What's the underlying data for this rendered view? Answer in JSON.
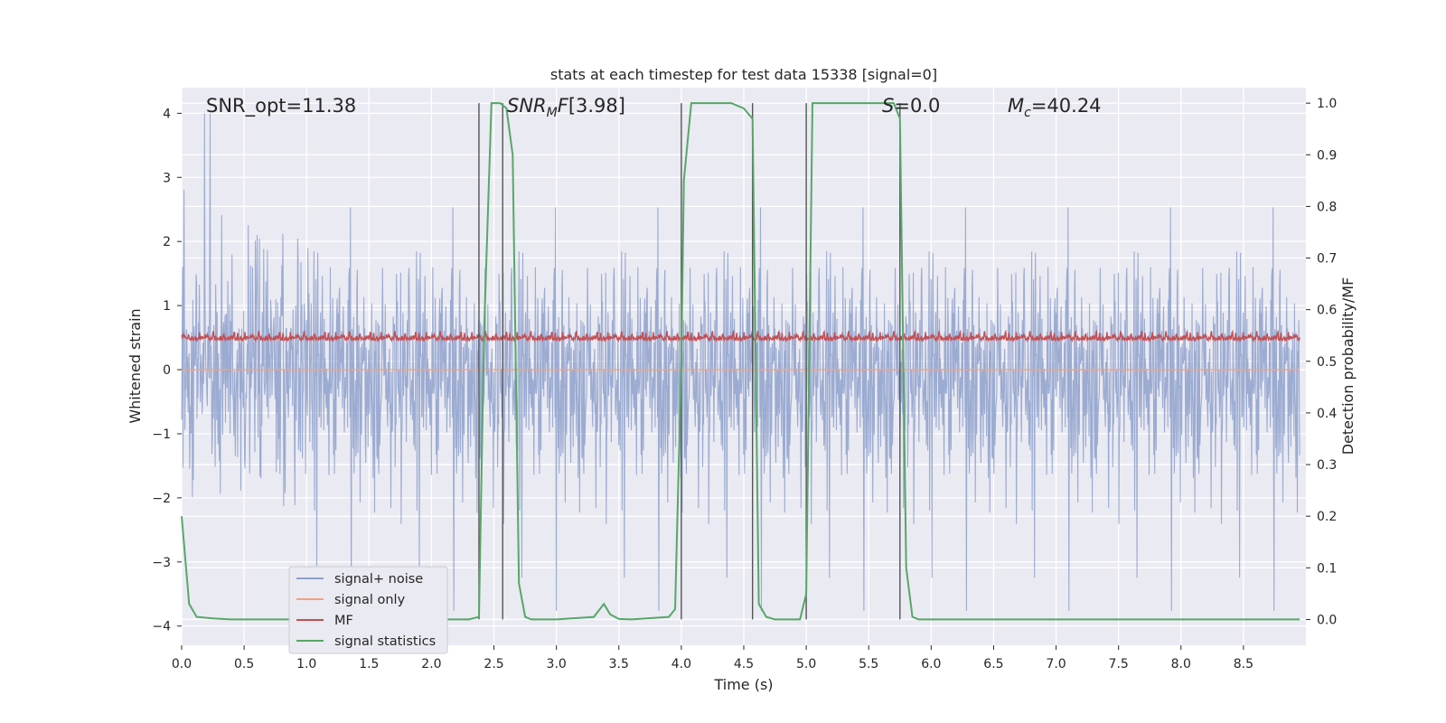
{
  "chart_data": {
    "type": "line",
    "title": "stats at each timestep for test data 15338 [signal=0]",
    "xlabel": "Time (s)",
    "ylabel": "Whitened strain",
    "y2label": "Detection probability/MF",
    "xlim": [
      0.0,
      9.0
    ],
    "ylim": [
      -4.3,
      4.4
    ],
    "y2lim": [
      -0.05,
      1.03
    ],
    "x_ticks": [
      0.0,
      0.5,
      1.0,
      1.5,
      2.0,
      2.5,
      3.0,
      3.5,
      4.0,
      4.5,
      5.0,
      5.5,
      6.0,
      6.5,
      7.0,
      7.5,
      8.0,
      8.5
    ],
    "x_tick_labels": [
      "0.0",
      "0.5",
      "1.0",
      "1.5",
      "2.0",
      "2.5",
      "3.0",
      "3.5",
      "4.0",
      "4.5",
      "5.0",
      "5.5",
      "6.0",
      "6.5",
      "7.0",
      "7.5",
      "8.0",
      "8.5"
    ],
    "y_ticks": [
      -4,
      -3,
      -2,
      -1,
      0,
      1,
      2,
      3,
      4
    ],
    "y_tick_labels": [
      "−4",
      "−3",
      "−2",
      "−1",
      "0",
      "1",
      "2",
      "3",
      "4"
    ],
    "y2_ticks": [
      0.0,
      0.1,
      0.2,
      0.3,
      0.4,
      0.5,
      0.6,
      0.7,
      0.8,
      0.9,
      1.0
    ],
    "y2_tick_labels": [
      "0.0",
      "0.1",
      "0.2",
      "0.3",
      "0.4",
      "0.5",
      "0.6",
      "0.7",
      "0.8",
      "0.9",
      "1.0"
    ],
    "grid": true,
    "legend_position": "lower-left",
    "annotations": {
      "snr_opt": "SNR_opt=11.38",
      "snr_mf": "[3.98]",
      "s_val": "=0.0",
      "mc_val": "=40.24"
    },
    "series": [
      {
        "name": "signal+ noise",
        "color": "#8da0cb",
        "description_noise_band": {
          "amplitude_typical": 1.6,
          "amplitude_peak": 4.0,
          "y_min_peak": -3.95
        }
      },
      {
        "name": "signal only",
        "color": "#f2a27e",
        "y_constant": 0.0
      },
      {
        "name": "MF",
        "color": "#c44e52",
        "y_band": [
          0.0,
          0.85
        ],
        "y_typical_center": 0.3
      },
      {
        "name": "signal statistics",
        "color": "#55a868",
        "axis": "right",
        "x": [
          0.0,
          0.06,
          0.12,
          0.25,
          0.4,
          1.0,
          2.0,
          2.2,
          2.3,
          2.38,
          2.42,
          2.48,
          2.55,
          2.6,
          2.65,
          2.7,
          2.75,
          2.8,
          3.0,
          3.3,
          3.38,
          3.43,
          3.5,
          3.6,
          3.9,
          3.95,
          4.0,
          4.02,
          4.08,
          4.2,
          4.4,
          4.5,
          4.57,
          4.62,
          4.68,
          4.75,
          4.95,
          5.0,
          5.05,
          5.3,
          5.6,
          5.7,
          5.75,
          5.8,
          5.85,
          5.9,
          6.5,
          8.0,
          8.95
        ],
        "y": [
          0.2,
          0.03,
          0.005,
          0.002,
          0.0,
          0.0,
          0.0,
          0.0,
          0.0,
          0.005,
          0.55,
          1.0,
          1.0,
          0.99,
          0.9,
          0.07,
          0.005,
          0.0,
          0.0,
          0.005,
          0.03,
          0.01,
          0.001,
          0.0,
          0.005,
          0.02,
          0.5,
          0.85,
          1.0,
          1.0,
          1.0,
          0.99,
          0.97,
          0.03,
          0.005,
          0.0,
          0.0,
          0.05,
          1.0,
          1.0,
          1.0,
          1.0,
          0.97,
          0.1,
          0.005,
          0.0,
          0.0,
          0.0,
          0.0
        ]
      }
    ],
    "vertical_lines_x": [
      2.38,
      2.57,
      4.0,
      4.57,
      5.0,
      5.75
    ]
  }
}
